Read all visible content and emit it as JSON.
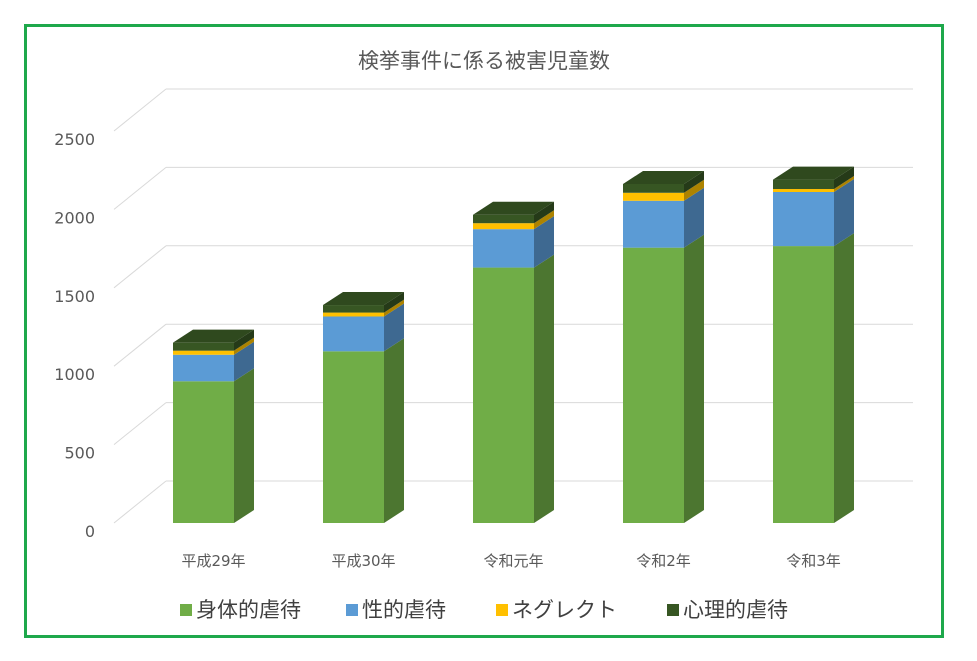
{
  "chart_data": {
    "type": "bar",
    "stacked": true,
    "style": "3d-column",
    "title": "検挙事件に係る被害児童数",
    "categories": [
      "平成29年",
      "平成30年",
      "令和元年",
      "令和2年",
      "令和3年"
    ],
    "series": [
      {
        "name": "身体的虐待",
        "color": "#70ad47",
        "values": [
          904,
          1095,
          1629,
          1756,
          1766
        ]
      },
      {
        "name": "性的虐待",
        "color": "#5b9bd5",
        "values": [
          169,
          222,
          245,
          299,
          345
        ]
      },
      {
        "name": "ネグレクト",
        "color": "#ffc000",
        "values": [
          26,
          25,
          38,
          51,
          19
        ]
      },
      {
        "name": "心理的虐待",
        "color": "#375623",
        "values": [
          51,
          48,
          54,
          56,
          60
        ]
      }
    ],
    "yticks": [
      0,
      500,
      1000,
      1500,
      2000,
      2500
    ],
    "ylim": [
      0,
      2500
    ],
    "legend": "bottom",
    "grid": true
  }
}
